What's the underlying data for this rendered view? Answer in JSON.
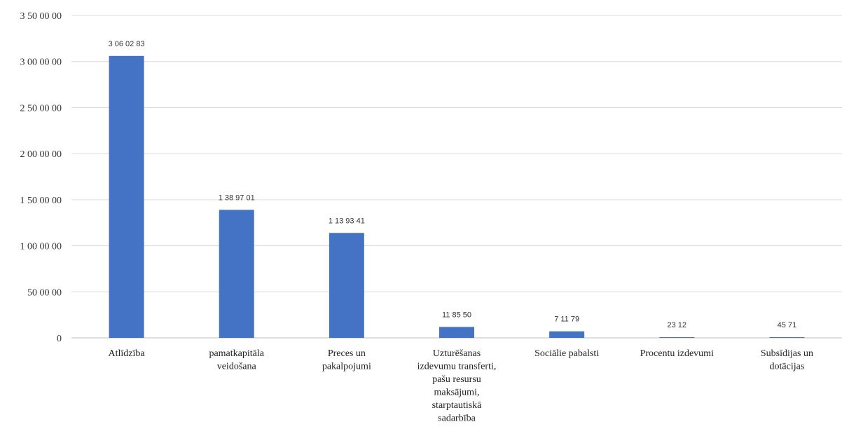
{
  "chart_data": {
    "type": "bar",
    "title": "",
    "xlabel": "",
    "ylabel": "",
    "ylim": [
      0,
      35000000
    ],
    "yticks": [
      0,
      5000000,
      10000000,
      15000000,
      20000000,
      25000000,
      30000000,
      35000000
    ],
    "ytick_labels": [
      "0",
      "50 00 00",
      "1 00 00 00",
      "1 50 00 00",
      "2 00 00 00",
      "2 50 00 00",
      "3 00 00 00",
      "3 50 00 00"
    ],
    "categories": [
      "Atlīdzība",
      "pamatkapitāla veidošana",
      "Preces un pakalpojumi",
      "Uzturēšanas izdevumu transferti, pašu resursu maksājumi, starptautiskā sadarbība",
      "Sociālie pabalsti",
      "Procentu izdevumi",
      "Subsīdijas un dotācijas"
    ],
    "category_lines": [
      [
        "Atlīdzība"
      ],
      [
        "pamatkapitāla",
        "veidošana"
      ],
      [
        "Preces un",
        "pakalpojumi"
      ],
      [
        "Uzturēšanas",
        "izdevumu transferti,",
        "pašu resursu",
        "maksājumi,",
        "starptautiskā",
        "sadarbība"
      ],
      [
        "Sociālie pabalsti"
      ],
      [
        "Procentu izdevumi"
      ],
      [
        "Subsīdijas un",
        "dotācijas"
      ]
    ],
    "values": [
      30602830,
      13897010,
      11393410,
      1185500,
      711790,
      23120,
      45710
    ],
    "value_labels": [
      "3 06 02 83",
      "1 38 97 01",
      "1 13 93 41",
      "11 85 50",
      "7 11 79",
      "23 12",
      "45 71"
    ],
    "grid": true,
    "legend": "none",
    "colors": {
      "bar": "#4472c4",
      "grid": "#d9d9d9"
    }
  }
}
